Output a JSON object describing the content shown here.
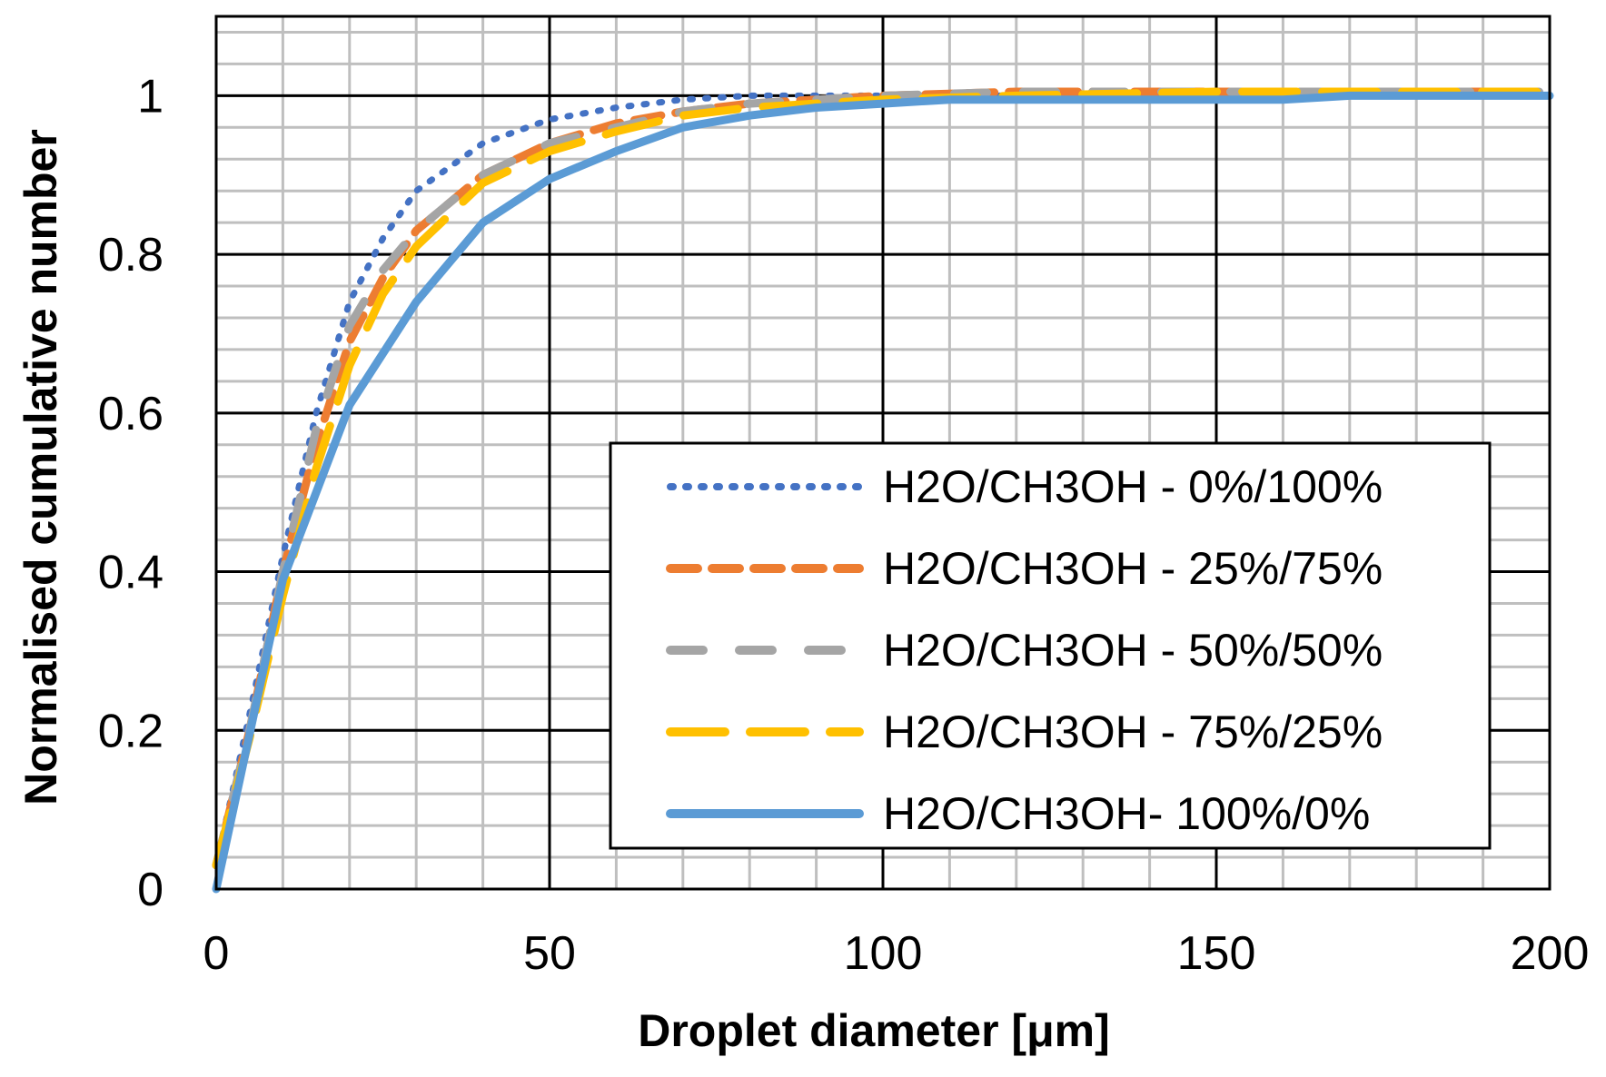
{
  "chart_data": {
    "type": "line",
    "title": "",
    "xlabel": "Droplet diameter [μm]",
    "ylabel": "Normalised cumulative number",
    "xlim": [
      0,
      200
    ],
    "ylim": [
      0,
      1.1
    ],
    "x_major_ticks": [
      0,
      50,
      100,
      150,
      200
    ],
    "x_tick_labels": [
      "0",
      "50",
      "100",
      "150",
      "200"
    ],
    "y_major_ticks": [
      0,
      0.2,
      0.4,
      0.6,
      0.8,
      1
    ],
    "y_tick_labels": [
      "0",
      "0.2",
      "0.4",
      "0.6",
      "0.8",
      "1"
    ],
    "x_minor_step": 10,
    "y_minor_step": 0.04,
    "grid": true,
    "legend_position": "bottom-right",
    "series": [
      {
        "name": "H2O/CH3OH - 0%/100%",
        "color": "#4472C4",
        "style": "dotted",
        "x": [
          0,
          5,
          10,
          15,
          20,
          25,
          30,
          40,
          50,
          60,
          70,
          80,
          90,
          100,
          120,
          150,
          170,
          200
        ],
        "y": [
          0.03,
          0.22,
          0.42,
          0.6,
          0.74,
          0.82,
          0.88,
          0.94,
          0.97,
          0.985,
          0.995,
          1,
          1,
          1,
          1,
          1,
          1,
          1
        ]
      },
      {
        "name": "H2O/CH3OH - 25%/75%",
        "color": "#ED7D31",
        "style": "dashed",
        "x": [
          0,
          5,
          10,
          15,
          20,
          25,
          30,
          40,
          50,
          60,
          70,
          80,
          90,
          100,
          120,
          150,
          170,
          200
        ],
        "y": [
          0.03,
          0.2,
          0.4,
          0.56,
          0.69,
          0.77,
          0.83,
          0.9,
          0.94,
          0.965,
          0.98,
          0.99,
          0.995,
          1,
          1.005,
          1.005,
          1.005,
          1.005
        ]
      },
      {
        "name": "H2O/CH3OH - 50%/50%",
        "color": "#A5A5A5",
        "style": "dashed-long",
        "x": [
          0,
          5,
          10,
          15,
          20,
          25,
          30,
          40,
          50,
          60,
          70,
          80,
          90,
          100,
          120,
          150,
          170,
          200
        ],
        "y": [
          0.03,
          0.2,
          0.4,
          0.58,
          0.71,
          0.78,
          0.83,
          0.9,
          0.94,
          0.96,
          0.98,
          0.99,
          0.995,
          1,
          1.005,
          1.005,
          1.005,
          1.005
        ]
      },
      {
        "name": "H2O/CH3OH - 75%/25%",
        "color": "#FFC000",
        "style": "long-dash",
        "x": [
          0,
          5,
          10,
          15,
          20,
          25,
          30,
          40,
          50,
          60,
          70,
          80,
          90,
          100,
          120,
          150,
          170,
          200
        ],
        "y": [
          0.03,
          0.19,
          0.37,
          0.53,
          0.66,
          0.75,
          0.81,
          0.89,
          0.93,
          0.955,
          0.975,
          0.985,
          0.99,
          0.995,
          1,
          1.005,
          1.005,
          1.005
        ]
      },
      {
        "name": "H2O/CH3OH- 100%/0%",
        "color": "#5B9BD5",
        "style": "solid",
        "x": [
          0,
          10,
          20,
          30,
          40,
          50,
          60,
          70,
          80,
          90,
          100,
          110,
          120,
          130,
          140,
          150,
          160,
          170,
          180,
          190,
          200
        ],
        "y": [
          0,
          0.39,
          0.61,
          0.74,
          0.84,
          0.895,
          0.93,
          0.96,
          0.975,
          0.985,
          0.99,
          0.995,
          0.995,
          0.995,
          0.995,
          0.995,
          0.995,
          1,
          1,
          1,
          1
        ]
      }
    ]
  }
}
